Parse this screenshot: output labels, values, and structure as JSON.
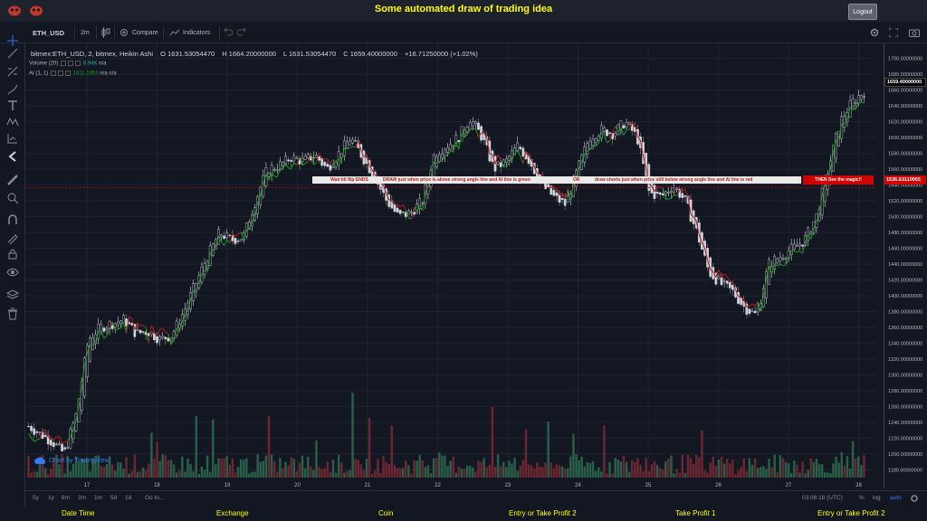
{
  "header": {
    "title": "Some automated draw of trading idea",
    "logout_label": "Logout",
    "brand_color": "#ffff00"
  },
  "toolbar": {
    "symbol": "ETH_USD",
    "interval": "2m",
    "compare_label": "Compare",
    "indicators_label": "Indicators"
  },
  "legend": {
    "title": "bitmex:ETH_USD, 2, bitmex, Heikin Ashi",
    "open": "O 1631.53054470",
    "high": "H 1664.20000000",
    "low": "L 1631.53054470",
    "close": "C 1659.40000000",
    "change": "+16.71250000 (+1.02%)"
  },
  "indicators": {
    "volume_label": "Volume (20)",
    "volume_value": "8.94K",
    "volume_na": "n/a",
    "ai_label": "AI (1, 1)",
    "ai_value": "1611.1958",
    "ai_na1": "n/a",
    "ai_na2": "n/a"
  },
  "annotation": {
    "part1": "Wait till flip ENDS",
    "part2": "DRAW just when  price is above strong angle line and AI line is green",
    "part3": "OR",
    "part4": "draw shorts just when price still below strong angle line and AI line is red",
    "cta": "THEN See the magic!!"
  },
  "watermark": "Chart by TradingView",
  "bottom": {
    "ranges": [
      "5y",
      "1y",
      "6m",
      "3m",
      "1m",
      "5d",
      "1d"
    ],
    "goto": "Go to...",
    "time": "03:06:18 (UTC)",
    "pct": "%",
    "log": "log",
    "auto": "auto"
  },
  "footer": {
    "cols": [
      "Date Time",
      "Exchange",
      "Coin",
      "Entry or Take Profit 2",
      "Take Profit 1",
      "Entry or Take Profit 2"
    ]
  },
  "price_labels": {
    "last": "1659.40000000",
    "line": "1536.63110065"
  },
  "chart_data": {
    "type": "candlestick",
    "x_ticks": [
      "17",
      "18",
      "19",
      "20",
      "21",
      "22",
      "23",
      "24",
      "25",
      "26",
      "27",
      "28"
    ],
    "y_ticks": [
      "1700.00000000",
      "1680.00000000",
      "1660.00000000",
      "1640.00000000",
      "1620.00000000",
      "1600.00000000",
      "1580.00000000",
      "1560.00000000",
      "1540.00000000",
      "1520.00000000",
      "1500.00000000",
      "1480.00000000",
      "1460.00000000",
      "1440.00000000",
      "1420.00000000",
      "1400.00000000",
      "1380.00000000",
      "1360.00000000",
      "1340.00000000",
      "1320.00000000",
      "1300.00000000",
      "1280.00000000",
      "1260.00000000",
      "1240.00000000",
      "1220.00000000",
      "1200.00000000",
      "1180.00000000"
    ],
    "ylim": [
      1170,
      1710
    ],
    "price_path": [
      [
        0,
        1235
      ],
      [
        4,
        1215
      ],
      [
        6,
        1200
      ],
      [
        8,
        1250
      ],
      [
        10,
        1345
      ],
      [
        12,
        1360
      ],
      [
        14,
        1365
      ],
      [
        16,
        1370
      ],
      [
        18,
        1352
      ],
      [
        20,
        1355
      ],
      [
        22,
        1345
      ],
      [
        24,
        1350
      ],
      [
        26,
        1380
      ],
      [
        28,
        1415
      ],
      [
        30,
        1450
      ],
      [
        32,
        1480
      ],
      [
        34,
        1470
      ],
      [
        36,
        1475
      ],
      [
        38,
        1520
      ],
      [
        40,
        1560
      ],
      [
        42,
        1565
      ],
      [
        44,
        1575
      ],
      [
        46,
        1570
      ],
      [
        48,
        1578
      ],
      [
        50,
        1560
      ],
      [
        52,
        1580
      ],
      [
        54,
        1600
      ],
      [
        56,
        1575
      ],
      [
        58,
        1550
      ],
      [
        60,
        1520
      ],
      [
        62,
        1500
      ],
      [
        64,
        1505
      ],
      [
        66,
        1520
      ],
      [
        68,
        1580
      ],
      [
        70,
        1590
      ],
      [
        72,
        1600
      ],
      [
        74,
        1625
      ],
      [
        76,
        1600
      ],
      [
        78,
        1560
      ],
      [
        80,
        1570
      ],
      [
        82,
        1590
      ],
      [
        84,
        1570
      ],
      [
        86,
        1540
      ],
      [
        88,
        1525
      ],
      [
        90,
        1515
      ],
      [
        92,
        1560
      ],
      [
        94,
        1600
      ],
      [
        96,
        1610
      ],
      [
        98,
        1605
      ],
      [
        100,
        1620
      ],
      [
        102,
        1600
      ],
      [
        104,
        1530
      ],
      [
        106,
        1525
      ],
      [
        108,
        1540
      ],
      [
        110,
        1520
      ],
      [
        112,
        1480
      ],
      [
        114,
        1430
      ],
      [
        116,
        1415
      ],
      [
        118,
        1405
      ],
      [
        120,
        1385
      ],
      [
        122,
        1375
      ],
      [
        124,
        1440
      ],
      [
        126,
        1450
      ],
      [
        128,
        1460
      ],
      [
        130,
        1470
      ],
      [
        132,
        1500
      ],
      [
        134,
        1560
      ],
      [
        136,
        1620
      ],
      [
        138,
        1645
      ],
      [
        140,
        1659
      ]
    ],
    "grid": true,
    "price_line": 1536.63110065
  }
}
